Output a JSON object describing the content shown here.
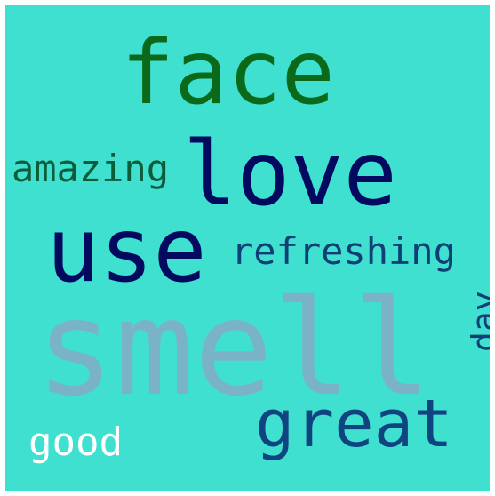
{
  "wordcloud": {
    "background_color": "#40e0d0",
    "words": [
      {
        "text": "smell",
        "color": "#7ab3c8"
      },
      {
        "text": "face",
        "color": "#0b6a1a"
      },
      {
        "text": "love",
        "color": "#03095e"
      },
      {
        "text": "use",
        "color": "#03095e"
      },
      {
        "text": "great",
        "color": "#0f4480"
      },
      {
        "text": "amazing",
        "color": "#0b5d3a"
      },
      {
        "text": "refreshing",
        "color": "#0f3f74"
      },
      {
        "text": "good",
        "color": "#ffffff"
      },
      {
        "text": "day",
        "color": "#0f3f74"
      }
    ]
  }
}
